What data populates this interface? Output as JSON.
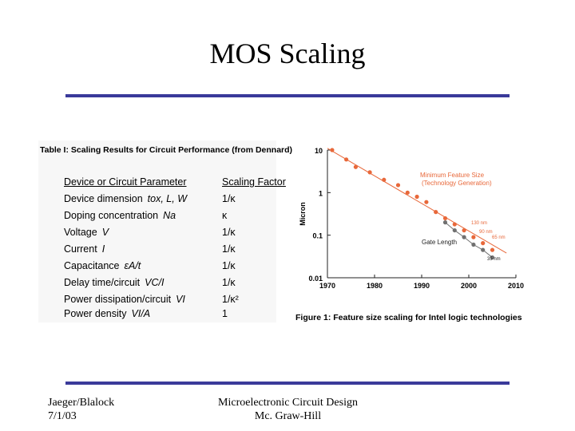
{
  "slide": {
    "title": "MOS Scaling",
    "rule_color": "#3a3a9a"
  },
  "table": {
    "caption": "Table I: Scaling Results for Circuit Performance (from Dennard)",
    "header": {
      "param": "Device or Circuit Parameter",
      "factor": "Scaling Factor"
    },
    "rows": [
      {
        "param": "Device dimension",
        "symbol": "tox, L, W",
        "factor": "1/κ"
      },
      {
        "param": "Doping concentration",
        "symbol": "Na",
        "factor": "κ"
      },
      {
        "param": "Voltage",
        "symbol": "V",
        "factor": "1/κ"
      },
      {
        "param": "Current",
        "symbol": "I",
        "factor": "1/κ"
      },
      {
        "param": "Capacitance",
        "symbol": "εA/t",
        "factor": "1/κ"
      },
      {
        "param": "Delay time/circuit",
        "symbol": "VC/I",
        "factor": "1/κ"
      },
      {
        "param": "Power dissipation/circuit",
        "symbol": "VI",
        "factor": "1/κ²"
      },
      {
        "param": "Power density",
        "symbol": "VI/A",
        "factor": "1"
      }
    ]
  },
  "chart_data": {
    "type": "scatter",
    "title": "Figure 1: Feature size scaling for Intel logic technologies",
    "xlabel": "",
    "ylabel": "Micron",
    "xlim": [
      1970,
      2010
    ],
    "ylim": [
      0.01,
      10
    ],
    "yscale": "log",
    "xticks": [
      "1970",
      "1980",
      "1990",
      "2000",
      "2010"
    ],
    "yticks": [
      "10",
      "1",
      "0.1",
      "0.01"
    ],
    "series": [
      {
        "name": "Minimum Feature Size (Technology Generation)",
        "label_line1": "Minimum Feature Size",
        "label_line2": "(Technology Generation)",
        "color": "#e8683a",
        "x": [
          1971,
          1974,
          1976,
          1979,
          1982,
          1985,
          1987,
          1989,
          1991,
          1993,
          1995,
          1997,
          1999,
          2001,
          2003,
          2005
        ],
        "y": [
          10,
          6,
          4,
          3,
          2,
          1.5,
          1.0,
          0.8,
          0.6,
          0.35,
          0.25,
          0.18,
          0.13,
          0.09,
          0.065,
          0.045
        ]
      },
      {
        "name": "Gate Length",
        "color": "#707070",
        "x": [
          1995,
          1997,
          1999,
          2001,
          2003,
          2005
        ],
        "y": [
          0.2,
          0.13,
          0.09,
          0.06,
          0.045,
          0.03
        ]
      }
    ],
    "annotations": [
      "130 nm",
      "90 nm",
      "65 nm",
      "35 nm"
    ],
    "trend_color": "#e8683a",
    "grid": false
  },
  "footer": {
    "left_line1": "Jaeger/Blalock",
    "left_line2": "7/1/03",
    "center_line1": "Microelectronic Circuit Design",
    "center_line2": "Mc. Graw-Hill"
  }
}
